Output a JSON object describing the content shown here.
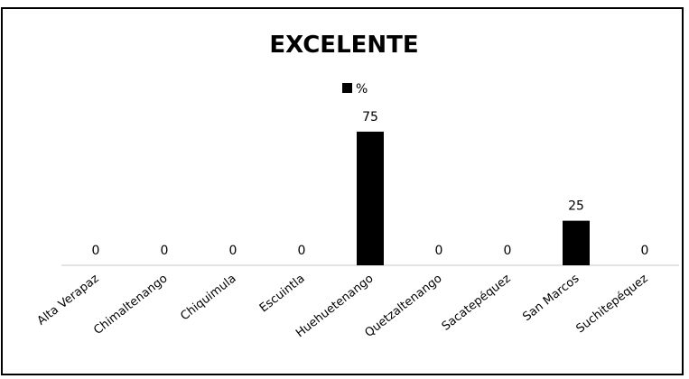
{
  "chart_data": {
    "type": "bar",
    "title": "EXCELENTE",
    "xlabel": "",
    "ylabel": "",
    "categories": [
      "Alta Verapaz",
      "Chimaltenango",
      "Chiquimula",
      "Escuintla",
      "Huehuetenango",
      "Quetzaltenango",
      "Sacatepéquez",
      "San Marcos",
      "Suchitepéquez"
    ],
    "series": [
      {
        "name": "%",
        "values": [
          0,
          0,
          0,
          0,
          75,
          0,
          0,
          25,
          0
        ],
        "color": "#000000"
      }
    ],
    "ylim": [
      0,
      80
    ],
    "grid": false,
    "legend_position": "top-center",
    "data_labels": true
  }
}
